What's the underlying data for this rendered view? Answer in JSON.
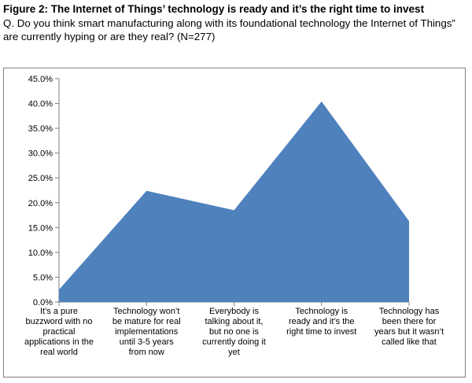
{
  "figure": {
    "title": "Figure 2: The Internet of Things’ technology is ready and it’s the right time to invest",
    "question": "Q. Do you think smart manufacturing along with its foundational technology the Internet of Things” are currently hyping or are they real? (N=277)"
  },
  "chart_data": {
    "type": "area",
    "title": "",
    "xlabel": "",
    "ylabel": "",
    "ylim": [
      0,
      45
    ],
    "grid": false,
    "legend": "none",
    "y_ticks": [
      "0.0%",
      "5.0%",
      "10.0%",
      "15.0%",
      "20.0%",
      "25.0%",
      "30.0%",
      "35.0%",
      "40.0%",
      "45.0%"
    ],
    "categories": [
      [
        "It’s a pure",
        "buzzword with no",
        "practical",
        "applications in the",
        "real world"
      ],
      [
        "Technology won’t",
        "be mature for real",
        "implementations",
        "until 3-5 years",
        "from now"
      ],
      [
        "Everybody is",
        "talking about it,",
        "but no one is",
        "currently doing it",
        "yet"
      ],
      [
        "Technology is",
        "ready and it’s the",
        "right time to invest"
      ],
      [
        "Technology has",
        "been there for",
        "years but it wasn’t",
        "called like that"
      ]
    ],
    "values": [
      2.5,
      22.4,
      18.5,
      40.4,
      16.3
    ],
    "fill_color": "#4f81bd",
    "axis_color": "#808080"
  }
}
